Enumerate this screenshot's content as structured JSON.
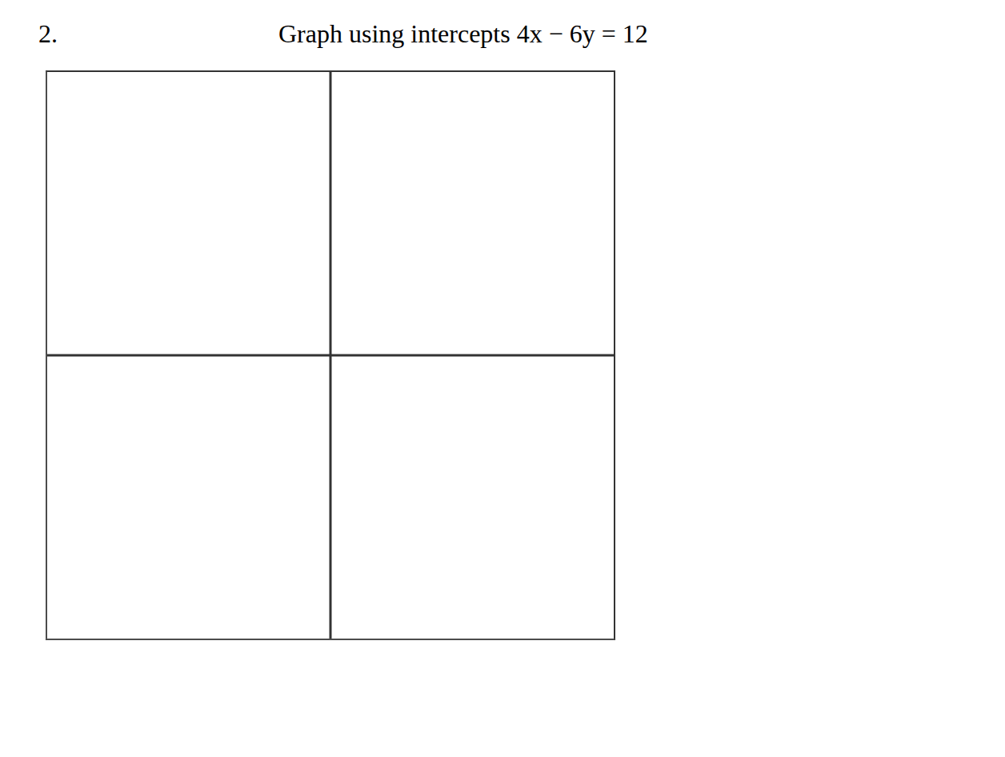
{
  "chart_data": {
    "type": "scatter",
    "title": "Graph using intercepts 4x − 6y = 12",
    "annotations": [
      "2."
    ],
    "xlim": [
      -6.5,
      6.5
    ],
    "ylim": [
      -6.5,
      6.5
    ],
    "xticks": [
      -6,
      -5,
      -4,
      -3,
      -2,
      -1,
      0,
      1,
      2,
      3,
      4,
      5,
      6
    ],
    "yticks": [
      -6,
      -5,
      -4,
      -3,
      -2,
      -1,
      0,
      1,
      2,
      3,
      4,
      5,
      6
    ],
    "grid": true,
    "tick_labels": false
  }
}
